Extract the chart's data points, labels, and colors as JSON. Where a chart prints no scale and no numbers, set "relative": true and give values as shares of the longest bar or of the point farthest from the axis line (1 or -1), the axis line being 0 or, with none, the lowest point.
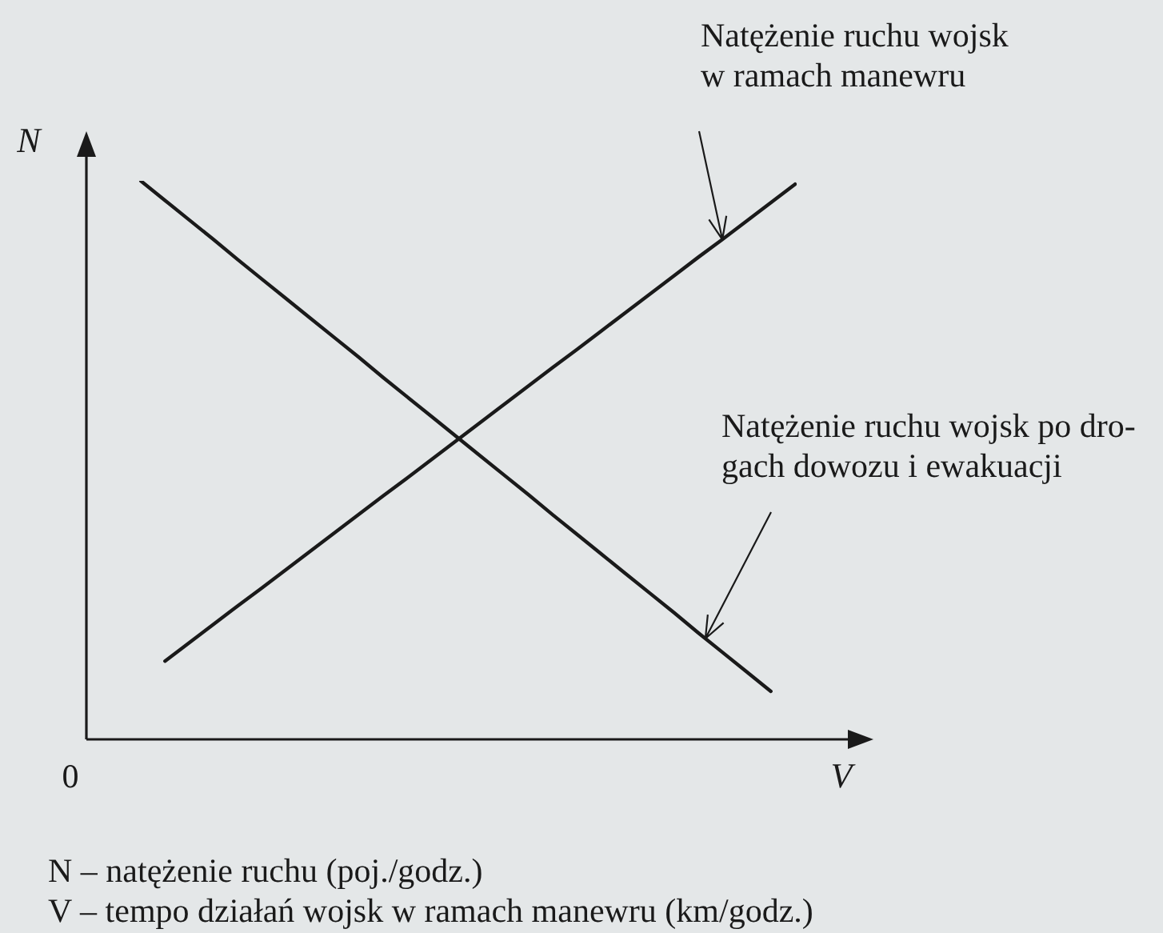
{
  "chart_data": {
    "type": "line",
    "relative": true,
    "xlabel": "V",
    "ylabel": "N",
    "tick_labels": false,
    "categories": [
      null,
      null,
      null,
      null,
      null,
      null,
      null,
      null,
      null,
      null,
      null,
      null,
      null,
      null,
      null,
      null,
      null,
      null,
      null,
      null,
      null,
      null,
      null,
      null,
      null,
      null,
      null,
      null
    ],
    "series": [
      {
        "color": "#1a1a1a",
        "values": [
          null,
          0.14,
          0.173,
          0.206,
          0.239,
          0.271,
          0.304,
          0.337,
          0.37,
          0.403,
          0.436,
          0.468,
          0.501,
          0.534,
          0.567,
          0.6,
          0.633,
          0.666,
          0.698,
          0.731,
          0.764,
          0.797,
          0.83,
          0.863,
          0.895,
          0.928,
          0.961,
          0.994
        ]
      },
      {
        "color": "#1a1a1a",
        "values": [
          1,
          0.965,
          0.93,
          0.895,
          0.859,
          0.824,
          0.789,
          0.754,
          0.719,
          0.684,
          0.648,
          0.613,
          0.578,
          0.543,
          0.508,
          0.473,
          0.438,
          0.402,
          0.367,
          0.332,
          0.297,
          0.262,
          0.227,
          0.191,
          0.156,
          0.121,
          0.086,
          null
        ]
      }
    ],
    "annotations": [
      "Natężenie ruchu wojsk w ramach manewru",
      "Natężenie ruchu wojsk po dro-gach dowozu i ewakuacji",
      "0",
      "N – natężenie ruchu (poj./godz.)",
      "V – tempo działań wojsk w ramach manewru (km/godz.)"
    ]
  }
}
